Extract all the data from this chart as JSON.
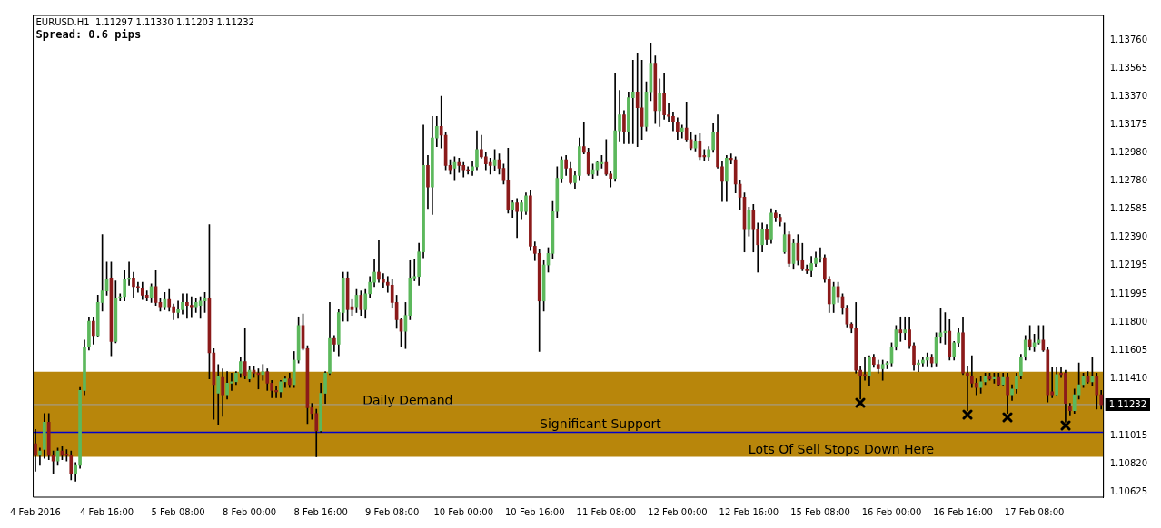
{
  "chart_data": {
    "type": "candlestick",
    "title": "EURUSD.H1  1.11297 1.11330 1.11203 1.11232",
    "subtitle": "Spread: 0.6 pips",
    "categories": [
      "4 Feb 2016",
      null,
      null,
      null,
      null,
      null,
      null,
      null,
      null,
      null,
      null,
      null,
      null,
      null,
      null,
      null,
      "4 Feb 16:00",
      null,
      null,
      null,
      null,
      null,
      null,
      null,
      null,
      null,
      null,
      null,
      null,
      null,
      null,
      null,
      "5 Feb 08:00",
      null,
      null,
      null,
      null,
      null,
      null,
      null,
      null,
      null,
      null,
      null,
      null,
      null,
      null,
      null,
      "8 Feb 00:00",
      null,
      null,
      null,
      null,
      null,
      null,
      null,
      null,
      null,
      null,
      null,
      null,
      null,
      null,
      null,
      "8 Feb 16:00",
      null,
      null,
      null,
      null,
      null,
      null,
      null,
      null,
      null,
      null,
      null,
      null,
      null,
      null,
      null,
      "9 Feb 08:00",
      null,
      null,
      null,
      null,
      null,
      null,
      null,
      null,
      null,
      null,
      null,
      null,
      null,
      null,
      null,
      "10 Feb 00:00",
      null,
      null,
      null,
      null,
      null,
      null,
      null,
      null,
      null,
      null,
      null,
      null,
      null,
      null,
      null,
      "10 Feb 16:00",
      null,
      null,
      null,
      null,
      null,
      null,
      null,
      null,
      null,
      null,
      null,
      null,
      null,
      null,
      null,
      "11 Feb 08:00",
      null,
      null,
      null,
      null,
      null,
      null,
      null,
      null,
      null,
      null,
      null,
      null,
      null,
      null,
      null,
      "12 Feb 00:00",
      null,
      null,
      null,
      null,
      null,
      null,
      null,
      null,
      null,
      null,
      null,
      null,
      null,
      null,
      null,
      "12 Feb 16:00",
      null,
      null,
      null,
      null,
      null,
      null,
      null,
      null,
      null,
      null,
      null,
      null,
      null,
      null,
      null,
      "15 Feb 08:00",
      null,
      null,
      null,
      null,
      null,
      null,
      null,
      null,
      null,
      null,
      null,
      null,
      null,
      null,
      null,
      "16 Feb 00:00",
      null,
      null,
      null,
      null,
      null,
      null,
      null,
      null,
      null,
      null,
      null,
      null,
      null,
      null,
      null,
      "16 Feb 16:00",
      null,
      null,
      null,
      null,
      null,
      null,
      null,
      null,
      null,
      null,
      null,
      null,
      null,
      null,
      null,
      "17 Feb 08:00",
      null,
      null,
      null,
      null,
      null,
      null,
      null,
      null,
      null,
      null,
      null,
      null,
      null,
      null,
      null
    ],
    "ohlc": [
      [
        1.1096,
        1.1106,
        1.1077,
        1.1088
      ],
      [
        1.1088,
        1.1093,
        1.1081,
        1.1091
      ],
      [
        1.1092,
        1.1117,
        1.1086,
        1.1111
      ],
      [
        1.1111,
        1.1117,
        1.1085,
        1.1088
      ],
      [
        1.1088,
        1.1091,
        1.1075,
        1.1084
      ],
      [
        1.1084,
        1.1093,
        1.1081,
        1.1091
      ],
      [
        1.1091,
        1.1094,
        1.1085,
        1.1088
      ],
      [
        1.1089,
        1.1092,
        1.1084,
        1.1088
      ],
      [
        1.1088,
        1.1091,
        1.1071,
        1.1075
      ],
      [
        1.1075,
        1.1083,
        1.107,
        1.1081
      ],
      [
        1.1081,
        1.1135,
        1.1079,
        1.1133
      ],
      [
        1.1133,
        1.1168,
        1.113,
        1.1163
      ],
      [
        1.1163,
        1.1184,
        1.1161,
        1.1181
      ],
      [
        1.1181,
        1.1184,
        1.1165,
        1.1171
      ],
      [
        1.1171,
        1.1199,
        1.117,
        1.1194
      ],
      [
        1.1194,
        1.1241,
        1.1188,
        1.1202
      ],
      [
        1.1202,
        1.1222,
        1.1199,
        1.121
      ],
      [
        1.1211,
        1.1222,
        1.1157,
        1.1167
      ],
      [
        1.1167,
        1.1209,
        1.1166,
        1.1197
      ],
      [
        1.1197,
        1.12,
        1.1195,
        1.1198
      ],
      [
        1.1198,
        1.1216,
        1.1195,
        1.121
      ],
      [
        1.121,
        1.1222,
        1.1206,
        1.1211
      ],
      [
        1.1211,
        1.1215,
        1.1197,
        1.1205
      ],
      [
        1.1205,
        1.1208,
        1.1201,
        1.1204
      ],
      [
        1.1204,
        1.1208,
        1.1196,
        1.1199
      ],
      [
        1.1199,
        1.1202,
        1.1195,
        1.1197
      ],
      [
        1.1197,
        1.1207,
        1.1194,
        1.1205
      ],
      [
        1.1205,
        1.1216,
        1.1192,
        1.1194
      ],
      [
        1.1194,
        1.1197,
        1.1188,
        1.1191
      ],
      [
        1.1191,
        1.1201,
        1.1189,
        1.1196
      ],
      [
        1.1196,
        1.1203,
        1.1188,
        1.1191
      ],
      [
        1.1191,
        1.1193,
        1.1182,
        1.1187
      ],
      [
        1.1187,
        1.1195,
        1.1183,
        1.1189
      ],
      [
        1.1189,
        1.12,
        1.1186,
        1.1194
      ],
      [
        1.1194,
        1.12,
        1.1183,
        1.1192
      ],
      [
        1.1192,
        1.1198,
        1.1184,
        1.1191
      ],
      [
        1.1191,
        1.1197,
        1.1187,
        1.1194
      ],
      [
        1.1192,
        1.1198,
        1.1183,
        1.1195
      ],
      [
        1.1195,
        1.1201,
        1.1187,
        1.1197
      ],
      [
        1.1197,
        1.1248,
        1.1141,
        1.1159
      ],
      [
        1.1159,
        1.1162,
        1.1113,
        1.1137
      ],
      [
        1.1131,
        1.1151,
        1.1109,
        1.1143
      ],
      [
        1.1142,
        1.1148,
        1.1115,
        1.113
      ],
      [
        1.113,
        1.1146,
        1.1127,
        1.1138
      ],
      [
        1.1138,
        1.1145,
        1.1133,
        1.1139
      ],
      [
        1.1139,
        1.1146,
        1.1137,
        1.1145
      ],
      [
        1.1145,
        1.1156,
        1.1142,
        1.1153
      ],
      [
        1.1153,
        1.1176,
        1.1141,
        1.1143
      ],
      [
        1.1141,
        1.115,
        1.1139,
        1.1147
      ],
      [
        1.1147,
        1.115,
        1.1142,
        1.1145
      ],
      [
        1.1145,
        1.1148,
        1.1134,
        1.1144
      ],
      [
        1.1144,
        1.1151,
        1.114,
        1.1146
      ],
      [
        1.1146,
        1.1148,
        1.1133,
        1.1138
      ],
      [
        1.1138,
        1.114,
        1.1128,
        1.1133
      ],
      [
        1.1133,
        1.1136,
        1.1128,
        1.1132
      ],
      [
        1.1132,
        1.114,
        1.1128,
        1.1139
      ],
      [
        1.1139,
        1.1143,
        1.1135,
        1.1141
      ],
      [
        1.1141,
        1.1145,
        1.1135,
        1.1137
      ],
      [
        1.1137,
        1.116,
        1.1135,
        1.1154
      ],
      [
        1.1154,
        1.1184,
        1.1152,
        1.1178
      ],
      [
        1.1178,
        1.1186,
        1.1161,
        1.1162
      ],
      [
        1.1162,
        1.1164,
        1.111,
        1.1121
      ],
      [
        1.1121,
        1.1124,
        1.1113,
        1.1117
      ],
      [
        1.1117,
        1.112,
        1.1087,
        1.1105
      ],
      [
        1.1105,
        1.1138,
        1.1104,
        1.1131
      ],
      [
        1.1131,
        1.1146,
        1.1124,
        1.1145
      ],
      [
        1.1145,
        1.1194,
        1.1144,
        1.1169
      ],
      [
        1.1169,
        1.1171,
        1.116,
        1.1165
      ],
      [
        1.1165,
        1.1189,
        1.1157,
        1.1187
      ],
      [
        1.1187,
        1.1215,
        1.1181,
        1.1211
      ],
      [
        1.1211,
        1.1215,
        1.1181,
        1.1189
      ],
      [
        1.1191,
        1.1196,
        1.1185,
        1.1189
      ],
      [
        1.1191,
        1.1203,
        1.1187,
        1.1199
      ],
      [
        1.1199,
        1.1202,
        1.1185,
        1.1189
      ],
      [
        1.1189,
        1.1203,
        1.1183,
        1.12
      ],
      [
        1.12,
        1.1212,
        1.1197,
        1.1208
      ],
      [
        1.1208,
        1.1224,
        1.1205,
        1.1215
      ],
      [
        1.1215,
        1.1237,
        1.1208,
        1.121
      ],
      [
        1.121,
        1.1214,
        1.1204,
        1.1208
      ],
      [
        1.1208,
        1.1212,
        1.1201,
        1.1206
      ],
      [
        1.1206,
        1.121,
        1.119,
        1.1194
      ],
      [
        1.1194,
        1.1199,
        1.1176,
        1.1182
      ],
      [
        1.1182,
        1.1183,
        1.1163,
        1.1174
      ],
      [
        1.1174,
        1.1194,
        1.1162,
        1.1185
      ],
      [
        1.1185,
        1.1223,
        1.1182,
        1.1211
      ],
      [
        1.1211,
        1.1224,
        1.1209,
        1.1212
      ],
      [
        1.1212,
        1.1235,
        1.1206,
        1.1229
      ],
      [
        1.1229,
        1.1317,
        1.1225,
        1.1289
      ],
      [
        1.1289,
        1.1296,
        1.1259,
        1.1274
      ],
      [
        1.1274,
        1.1323,
        1.1255,
        1.1308
      ],
      [
        1.1308,
        1.1323,
        1.1302,
        1.1316
      ],
      [
        1.1316,
        1.1337,
        1.1301,
        1.131
      ],
      [
        1.131,
        1.1312,
        1.1286,
        1.1289
      ],
      [
        1.1289,
        1.1293,
        1.1283,
        1.1286
      ],
      [
        1.1287,
        1.1295,
        1.1279,
        1.1291
      ],
      [
        1.1291,
        1.1294,
        1.1284,
        1.1289
      ],
      [
        1.1289,
        1.1291,
        1.1281,
        1.1286
      ],
      [
        1.1286,
        1.1288,
        1.1283,
        1.1285
      ],
      [
        1.1285,
        1.1292,
        1.1282,
        1.1288
      ],
      [
        1.1288,
        1.1313,
        1.1286,
        1.13
      ],
      [
        1.13,
        1.131,
        1.1294,
        1.1295
      ],
      [
        1.1295,
        1.1298,
        1.1286,
        1.129
      ],
      [
        1.1291,
        1.1294,
        1.1283,
        1.1289
      ],
      [
        1.1289,
        1.13,
        1.1285,
        1.1293
      ],
      [
        1.1293,
        1.1297,
        1.1283,
        1.1287
      ],
      [
        1.1287,
        1.129,
        1.1276,
        1.1279
      ],
      [
        1.1279,
        1.1301,
        1.1256,
        1.1258
      ],
      [
        1.1258,
        1.1265,
        1.1253,
        1.1263
      ],
      [
        1.1263,
        1.1266,
        1.1239,
        1.1257
      ],
      [
        1.1257,
        1.1265,
        1.1252,
        1.1263
      ],
      [
        1.1257,
        1.127,
        1.1255,
        1.1268
      ],
      [
        1.1268,
        1.1272,
        1.123,
        1.1233
      ],
      [
        1.1233,
        1.1236,
        1.1223,
        1.1228
      ],
      [
        1.1228,
        1.1231,
        1.116,
        1.1195
      ],
      [
        1.1195,
        1.1223,
        1.1188,
        1.122
      ],
      [
        1.122,
        1.1232,
        1.1215,
        1.1228
      ],
      [
        1.1228,
        1.1264,
        1.1224,
        1.1257
      ],
      [
        1.1257,
        1.1288,
        1.1253,
        1.128
      ],
      [
        1.128,
        1.1295,
        1.1277,
        1.1293
      ],
      [
        1.1293,
        1.1296,
        1.1282,
        1.1287
      ],
      [
        1.1287,
        1.1291,
        1.1276,
        1.1277
      ],
      [
        1.1277,
        1.1285,
        1.1273,
        1.1282
      ],
      [
        1.1282,
        1.1308,
        1.1279,
        1.1302
      ],
      [
        1.1302,
        1.1319,
        1.1297,
        1.1298
      ],
      [
        1.1298,
        1.1301,
        1.1282,
        1.1283
      ],
      [
        1.1283,
        1.129,
        1.128,
        1.1286
      ],
      [
        1.1286,
        1.1292,
        1.1282,
        1.1291
      ],
      [
        1.129,
        1.1296,
        1.1287,
        1.1291
      ],
      [
        1.1291,
        1.1307,
        1.1282,
        1.1283
      ],
      [
        1.1283,
        1.1285,
        1.1274,
        1.128
      ],
      [
        1.128,
        1.1353,
        1.1278,
        1.1313
      ],
      [
        1.1313,
        1.1341,
        1.1306,
        1.1324
      ],
      [
        1.1324,
        1.1327,
        1.1304,
        1.1312
      ],
      [
        1.1312,
        1.134,
        1.1304,
        1.1336
      ],
      [
        1.1336,
        1.1362,
        1.1304,
        1.134
      ],
      [
        1.134,
        1.1367,
        1.1302,
        1.1329
      ],
      [
        1.1329,
        1.1362,
        1.1307,
        1.1316
      ],
      [
        1.1316,
        1.1347,
        1.1313,
        1.134
      ],
      [
        1.134,
        1.1374,
        1.1334,
        1.136
      ],
      [
        1.136,
        1.1365,
        1.1318,
        1.1327
      ],
      [
        1.1327,
        1.1349,
        1.1316,
        1.1339
      ],
      [
        1.1339,
        1.1353,
        1.1321,
        1.1324
      ],
      [
        1.1324,
        1.1332,
        1.1319,
        1.1323
      ],
      [
        1.1323,
        1.1326,
        1.1313,
        1.1319
      ],
      [
        1.1319,
        1.1322,
        1.1307,
        1.1312
      ],
      [
        1.1312,
        1.1317,
        1.1308,
        1.1315
      ],
      [
        1.1315,
        1.1333,
        1.1306,
        1.1307
      ],
      [
        1.1307,
        1.1312,
        1.13,
        1.1301
      ],
      [
        1.1301,
        1.131,
        1.1299,
        1.1306
      ],
      [
        1.1306,
        1.1311,
        1.1293,
        1.1295
      ],
      [
        1.1296,
        1.13,
        1.1292,
        1.1295
      ],
      [
        1.1295,
        1.1302,
        1.1292,
        1.13
      ],
      [
        1.13,
        1.1318,
        1.1298,
        1.1312
      ],
      [
        1.1312,
        1.1324,
        1.1287,
        1.1288
      ],
      [
        1.1288,
        1.1292,
        1.1264,
        1.1278
      ],
      [
        1.1278,
        1.1296,
        1.1264,
        1.1294
      ],
      [
        1.1294,
        1.1297,
        1.129,
        1.1293
      ],
      [
        1.1293,
        1.1295,
        1.127,
        1.1276
      ],
      [
        1.1276,
        1.1279,
        1.1258,
        1.1267
      ],
      [
        1.1267,
        1.127,
        1.1229,
        1.1245
      ],
      [
        1.1245,
        1.126,
        1.124,
        1.1258
      ],
      [
        1.1258,
        1.1262,
        1.1229,
        1.1245
      ],
      [
        1.1245,
        1.1249,
        1.1215,
        1.1234
      ],
      [
        1.1234,
        1.1249,
        1.1229,
        1.1245
      ],
      [
        1.1245,
        1.1248,
        1.1234,
        1.1238
      ],
      [
        1.1238,
        1.1259,
        1.1235,
        1.1256
      ],
      [
        1.1256,
        1.1258,
        1.125,
        1.1253
      ],
      [
        1.1253,
        1.1255,
        1.1247,
        1.125
      ],
      [
        1.1229,
        1.1249,
        1.1228,
        1.1241
      ],
      [
        1.1241,
        1.1243,
        1.1219,
        1.1221
      ],
      [
        1.1221,
        1.1238,
        1.1217,
        1.1235
      ],
      [
        1.1235,
        1.1241,
        1.122,
        1.1223
      ],
      [
        1.1223,
        1.1235,
        1.1216,
        1.1217
      ],
      [
        1.1217,
        1.122,
        1.1214,
        1.1216
      ],
      [
        1.1216,
        1.1226,
        1.1212,
        1.1221
      ],
      [
        1.1221,
        1.1229,
        1.1219,
        1.1225
      ],
      [
        1.1225,
        1.1232,
        1.1222,
        1.1225
      ],
      [
        1.1225,
        1.1227,
        1.1208,
        1.121
      ],
      [
        1.121,
        1.1212,
        1.1187,
        1.1193
      ],
      [
        1.1193,
        1.1208,
        1.1187,
        1.1205
      ],
      [
        1.1205,
        1.1208,
        1.1194,
        1.1198
      ],
      [
        1.1198,
        1.12,
        1.1186,
        1.119
      ],
      [
        1.119,
        1.1192,
        1.1177,
        1.1179
      ],
      [
        1.1179,
        1.118,
        1.1173,
        1.1176
      ],
      [
        1.1176,
        1.1194,
        1.1145,
        1.1147
      ],
      [
        1.1147,
        1.115,
        1.1127,
        1.1143
      ],
      [
        1.1144,
        1.1156,
        1.114,
        1.1143
      ],
      [
        1.1143,
        1.1157,
        1.1136,
        1.1156
      ],
      [
        1.1156,
        1.1158,
        1.1149,
        1.1151
      ],
      [
        1.1151,
        1.1154,
        1.1145,
        1.1148
      ],
      [
        1.1148,
        1.1154,
        1.114,
        1.1151
      ],
      [
        1.1151,
        1.1153,
        1.1148,
        1.1152
      ],
      [
        1.1152,
        1.1166,
        1.115,
        1.1163
      ],
      [
        1.1163,
        1.1178,
        1.1161,
        1.1175
      ],
      [
        1.1175,
        1.1184,
        1.1167,
        1.1173
      ],
      [
        1.1173,
        1.1184,
        1.1168,
        1.1175
      ],
      [
        1.1175,
        1.1184,
        1.1162,
        1.1164
      ],
      [
        1.1164,
        1.1166,
        1.1147,
        1.1151
      ],
      [
        1.1151,
        1.1154,
        1.1146,
        1.1152
      ],
      [
        1.1152,
        1.1156,
        1.115,
        1.1154
      ],
      [
        1.1154,
        1.1159,
        1.115,
        1.1156
      ],
      [
        1.1156,
        1.1158,
        1.1149,
        1.1152
      ],
      [
        1.1152,
        1.1173,
        1.115,
        1.117
      ],
      [
        1.117,
        1.119,
        1.1166,
        1.1173
      ],
      [
        1.1173,
        1.1187,
        1.1165,
        1.1174
      ],
      [
        1.1174,
        1.1182,
        1.1154,
        1.1156
      ],
      [
        1.1156,
        1.1167,
        1.1154,
        1.1166
      ],
      [
        1.1166,
        1.1176,
        1.1163,
        1.1173
      ],
      [
        1.1173,
        1.1184,
        1.1144,
        1.1145
      ],
      [
        1.1145,
        1.115,
        1.1119,
        1.1143
      ],
      [
        1.1143,
        1.1157,
        1.1135,
        1.1138
      ],
      [
        1.1138,
        1.1141,
        1.113,
        1.1135
      ],
      [
        1.1135,
        1.1143,
        1.1131,
        1.1139
      ],
      [
        1.1139,
        1.1145,
        1.1137,
        1.1143
      ],
      [
        1.1143,
        1.1145,
        1.114,
        1.1141
      ],
      [
        1.1141,
        1.1145,
        1.1138,
        1.1142
      ],
      [
        1.1142,
        1.1145,
        1.1136,
        1.1137
      ],
      [
        1.1137,
        1.1145,
        1.1136,
        1.1142
      ],
      [
        1.1142,
        1.1145,
        1.1117,
        1.113
      ],
      [
        1.113,
        1.1137,
        1.1126,
        1.1134
      ],
      [
        1.1134,
        1.1145,
        1.1131,
        1.1143
      ],
      [
        1.1143,
        1.1158,
        1.1141,
        1.1156
      ],
      [
        1.1156,
        1.1171,
        1.1154,
        1.1168
      ],
      [
        1.1168,
        1.1178,
        1.1161,
        1.1163
      ],
      [
        1.1163,
        1.1172,
        1.116,
        1.1166
      ],
      [
        1.1166,
        1.1178,
        1.1165,
        1.1168
      ],
      [
        1.1168,
        1.1178,
        1.116,
        1.1161
      ],
      [
        1.1161,
        1.1163,
        1.1125,
        1.113
      ],
      [
        1.1132,
        1.1149,
        1.1128,
        1.113
      ],
      [
        1.113,
        1.1149,
        1.1129,
        1.1144
      ],
      [
        1.1145,
        1.1149,
        1.1142,
        1.1144
      ],
      [
        1.1145,
        1.1147,
        1.1111,
        1.1124
      ],
      [
        1.1122,
        1.1124,
        1.1116,
        1.1119
      ],
      [
        1.1119,
        1.1134,
        1.1117,
        1.113
      ],
      [
        1.113,
        1.1152,
        1.1127,
        1.1137
      ],
      [
        1.1137,
        1.1145,
        1.1135,
        1.1143
      ],
      [
        1.1143,
        1.1146,
        1.1138,
        1.1139
      ],
      [
        1.1139,
        1.1156,
        1.1136,
        1.1143
      ],
      [
        1.1143,
        1.1145,
        1.112,
        1.113
      ],
      [
        1.113,
        1.1133,
        1.112,
        1.1123
      ]
    ],
    "colors": [
      "#8b1a1a",
      "#5cb85c",
      "#5cb85c",
      "#8b1a1a",
      "#8b1a1a",
      "#5cb85c",
      "#8b1a1a",
      "#8b1a1a",
      "#8b1a1a",
      "#5cb85c",
      "#5cb85c",
      "#5cb85c",
      "#5cb85c",
      "#8b1a1a",
      "#5cb85c",
      "#5cb85c",
      "#5cb85c",
      "#8b1a1a",
      "#5cb85c",
      "#5cb85c",
      "#5cb85c",
      "#5cb85c",
      "#8b1a1a",
      "#8b1a1a",
      "#8b1a1a",
      "#8b1a1a",
      "#5cb85c",
      "#8b1a1a",
      "#8b1a1a",
      "#5cb85c",
      "#8b1a1a",
      "#8b1a1a",
      "#5cb85c",
      "#5cb85c",
      "#8b1a1a",
      "#8b1a1a",
      "#5cb85c",
      "#5cb85c",
      "#5cb85c",
      "#8b1a1a",
      "#8b1a1a",
      "#5cb85c",
      "#8b1a1a",
      "#5cb85c",
      "#5cb85c",
      "#5cb85c",
      "#5cb85c",
      "#8b1a1a",
      "#5cb85c",
      "#8b1a1a",
      "#8b1a1a",
      "#5cb85c",
      "#8b1a1a",
      "#8b1a1a",
      "#8b1a1a",
      "#5cb85c",
      "#5cb85c",
      "#8b1a1a",
      "#5cb85c",
      "#5cb85c",
      "#8b1a1a",
      "#8b1a1a",
      "#8b1a1a",
      "#8b1a1a",
      "#5cb85c",
      "#5cb85c",
      "#5cb85c",
      "#8b1a1a",
      "#5cb85c",
      "#5cb85c",
      "#8b1a1a",
      "#8b1a1a",
      "#5cb85c",
      "#8b1a1a",
      "#5cb85c",
      "#5cb85c",
      "#5cb85c",
      "#8b1a1a",
      "#8b1a1a",
      "#8b1a1a",
      "#8b1a1a",
      "#8b1a1a",
      "#8b1a1a",
      "#5cb85c",
      "#5cb85c",
      "#5cb85c",
      "#5cb85c",
      "#5cb85c",
      "#8b1a1a",
      "#5cb85c",
      "#5cb85c",
      "#8b1a1a",
      "#8b1a1a",
      "#8b1a1a",
      "#5cb85c",
      "#8b1a1a",
      "#8b1a1a",
      "#8b1a1a",
      "#5cb85c",
      "#5cb85c",
      "#8b1a1a",
      "#8b1a1a",
      "#8b1a1a",
      "#5cb85c",
      "#8b1a1a",
      "#8b1a1a",
      "#8b1a1a",
      "#5cb85c",
      "#8b1a1a",
      "#5cb85c",
      "#5cb85c",
      "#8b1a1a",
      "#8b1a1a",
      "#8b1a1a",
      "#5cb85c",
      "#5cb85c",
      "#5cb85c",
      "#5cb85c",
      "#5cb85c",
      "#8b1a1a",
      "#8b1a1a",
      "#5cb85c",
      "#5cb85c",
      "#8b1a1a",
      "#8b1a1a",
      "#5cb85c",
      "#5cb85c",
      "#5cb85c",
      "#8b1a1a",
      "#8b1a1a",
      "#5cb85c",
      "#5cb85c",
      "#8b1a1a",
      "#5cb85c",
      "#5cb85c",
      "#8b1a1a",
      "#8b1a1a",
      "#5cb85c",
      "#5cb85c",
      "#8b1a1a",
      "#5cb85c",
      "#8b1a1a",
      "#8b1a1a",
      "#8b1a1a",
      "#8b1a1a",
      "#5cb85c",
      "#8b1a1a",
      "#8b1a1a",
      "#5cb85c",
      "#8b1a1a",
      "#8b1a1a",
      "#5cb85c",
      "#5cb85c",
      "#8b1a1a",
      "#8b1a1a",
      "#5cb85c",
      "#8b1a1a",
      "#8b1a1a",
      "#8b1a1a",
      "#8b1a1a",
      "#5cb85c",
      "#8b1a1a",
      "#8b1a1a",
      "#5cb85c",
      "#8b1a1a",
      "#5cb85c",
      "#8b1a1a",
      "#8b1a1a",
      "#5cb85c",
      "#8b1a1a",
      "#5cb85c",
      "#8b1a1a",
      "#8b1a1a",
      "#8b1a1a",
      "#5cb85c",
      "#5cb85c",
      "#5cb85c",
      "#8b1a1a",
      "#8b1a1a",
      "#5cb85c",
      "#8b1a1a",
      "#8b1a1a",
      "#8b1a1a",
      "#8b1a1a",
      "#8b1a1a",
      "#8b1a1a",
      "#8b1a1a",
      "#5cb85c",
      "#8b1a1a",
      "#8b1a1a",
      "#5cb85c",
      "#5cb85c",
      "#5cb85c",
      "#5cb85c",
      "#8b1a1a",
      "#5cb85c",
      "#8b1a1a",
      "#8b1a1a",
      "#5cb85c",
      "#5cb85c",
      "#5cb85c",
      "#8b1a1a",
      "#5cb85c",
      "#5cb85c",
      "#5cb85c",
      "#8b1a1a",
      "#5cb85c",
      "#5cb85c",
      "#8b1a1a",
      "#8b1a1a",
      "#8b1a1a",
      "#8b1a1a",
      "#5cb85c",
      "#5cb85c",
      "#8b1a1a",
      "#5cb85c",
      "#8b1a1a",
      "#5cb85c",
      "#8b1a1a",
      "#5cb85c",
      "#5cb85c",
      "#5cb85c",
      "#5cb85c",
      "#8b1a1a",
      "#5cb85c",
      "#5cb85c",
      "#8b1a1a",
      "#8b1a1a",
      "#8b1a1a",
      "#5cb85c",
      "#8b1a1a",
      "#8b1a1a",
      "#8b1a1a",
      "#5cb85c",
      "#5cb85c",
      "#5cb85c",
      "#8b1a1a",
      "#5cb85c",
      "#8b1a1a",
      "#8b1a1a"
    ],
    "ylim": [
      1.1059,
      1.1393
    ],
    "yticks": [
      {
        "value": 1.1376,
        "label": "1.13760"
      },
      {
        "value": 1.13565,
        "label": "1.13565"
      },
      {
        "value": 1.1337,
        "label": "1.13370"
      },
      {
        "value": 1.13175,
        "label": "1.13175"
      },
      {
        "value": 1.1298,
        "label": "1.12980"
      },
      {
        "value": 1.1278,
        "label": "1.12780"
      },
      {
        "value": 1.12585,
        "label": "1.12585"
      },
      {
        "value": 1.1239,
        "label": "1.12390"
      },
      {
        "value": 1.12195,
        "label": "1.12195"
      },
      {
        "value": 1.11995,
        "label": "1.11995"
      },
      {
        "value": 1.118,
        "label": "1.11800"
      },
      {
        "value": 1.11605,
        "label": "1.11605"
      },
      {
        "value": 1.1141,
        "label": "1.11410"
      },
      {
        "value": 1.11015,
        "label": "1.11015"
      },
      {
        "value": 1.1082,
        "label": "1.10820"
      },
      {
        "value": 1.10625,
        "label": "1.10625"
      }
    ],
    "ref_lines": [
      {
        "axis": "y",
        "value": 1.11232,
        "label": "1.11232",
        "color": "#a0a0a0"
      },
      {
        "axis": "y",
        "value": 1.1104,
        "label": "Significant Support",
        "color": "#0000cc"
      }
    ],
    "bands": [
      {
        "axis": "y",
        "from": 1.1087,
        "to": 1.1146,
        "label": "Daily Demand",
        "color": "#b8860b"
      }
    ],
    "annotations": [
      "Lots Of Sell Stops Down Here"
    ]
  }
}
